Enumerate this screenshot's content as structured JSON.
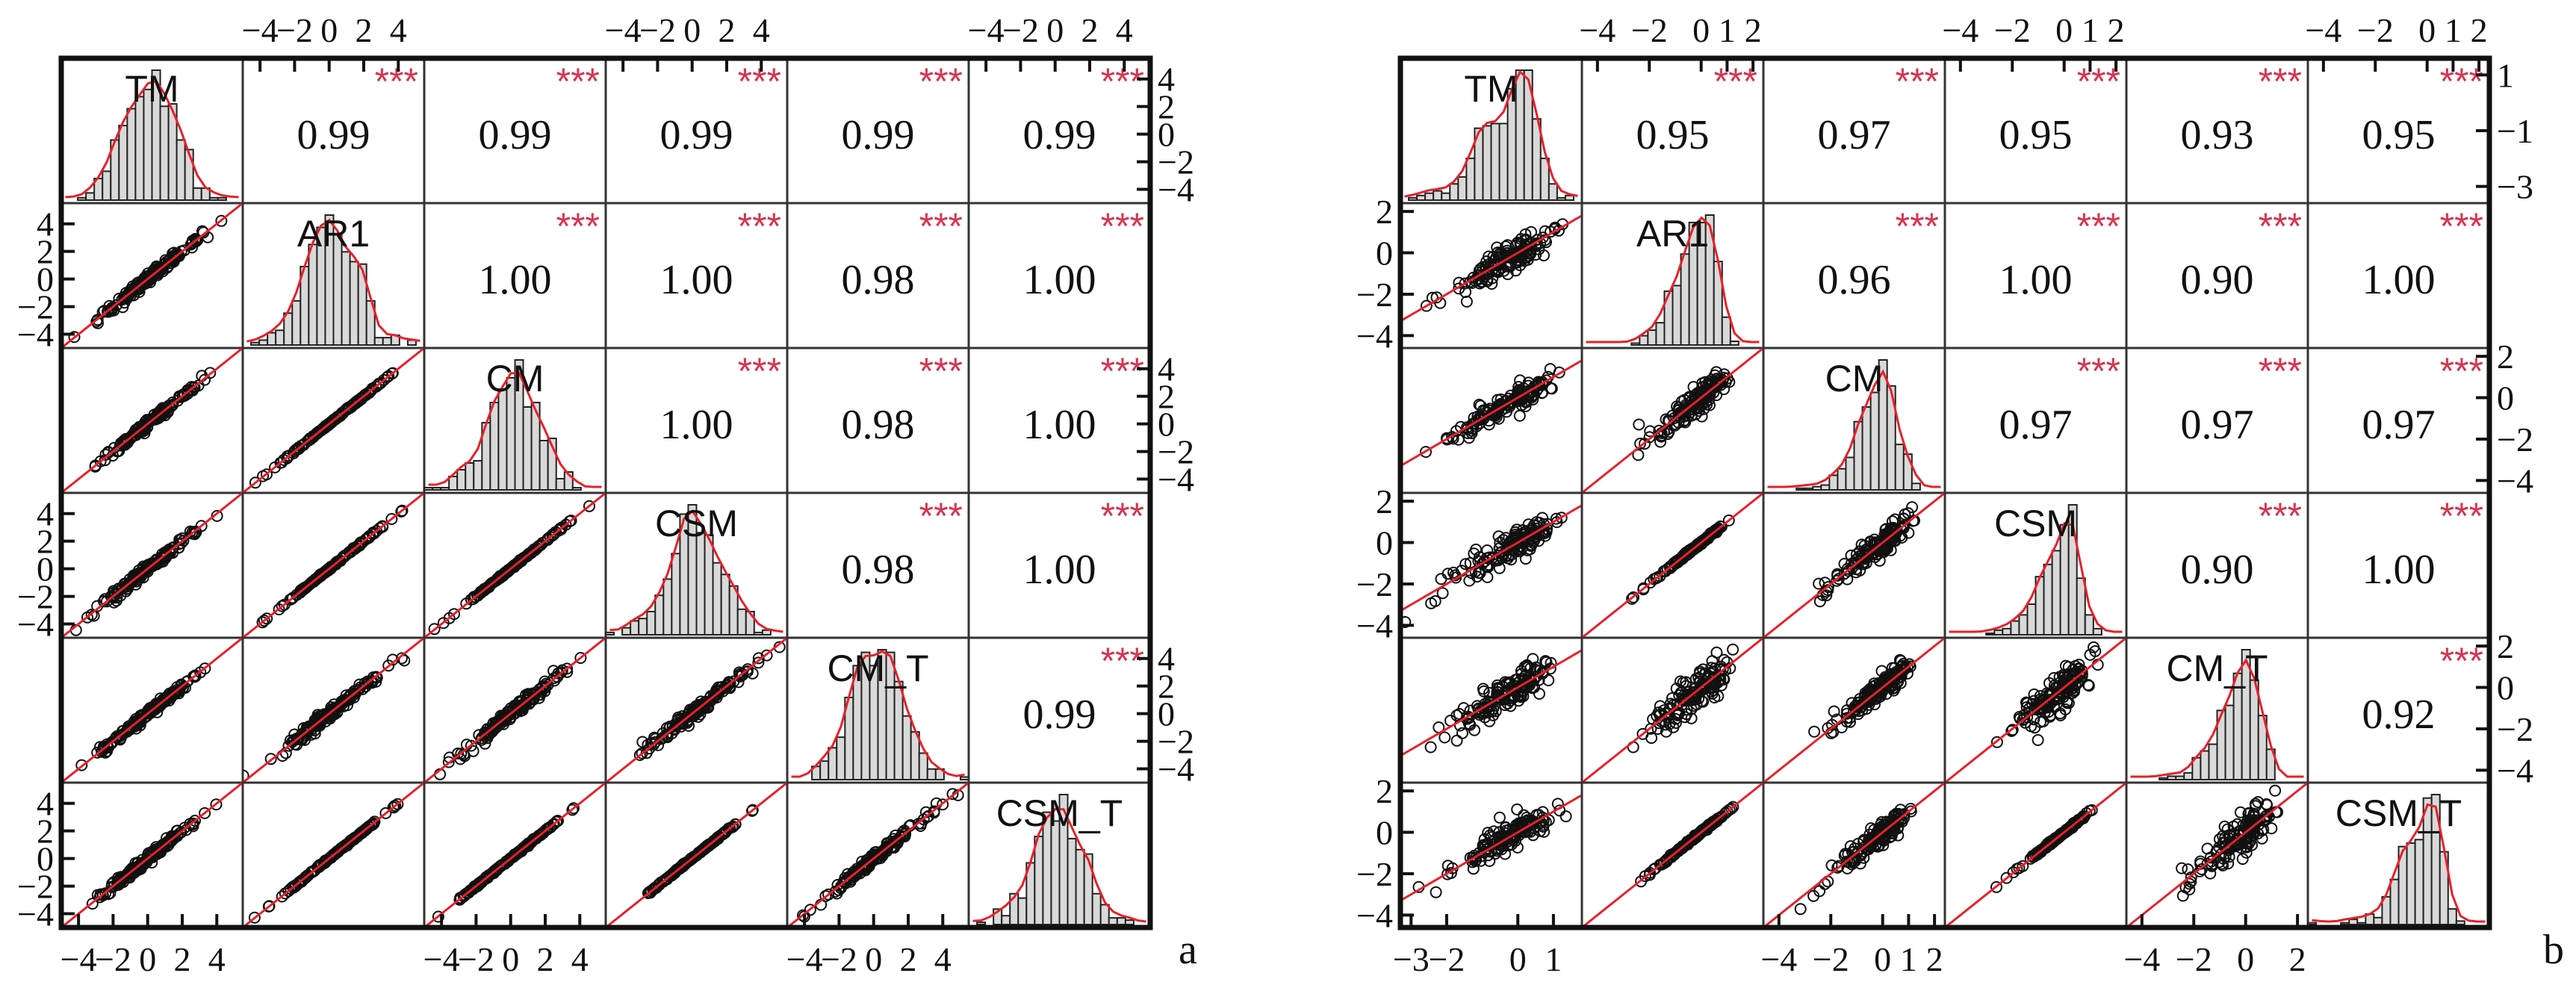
{
  "chart_data": [
    {
      "type": "scatter-matrix",
      "panel_label": "a",
      "variables": [
        "TM",
        "AR1",
        "CM",
        "CSM",
        "CM_T",
        "CSM_T"
      ],
      "significance": "***",
      "correlations": [
        [
          null,
          0.99,
          0.99,
          0.99,
          0.99,
          0.99
        ],
        [
          null,
          null,
          1.0,
          1.0,
          0.98,
          1.0
        ],
        [
          null,
          null,
          null,
          1.0,
          0.98,
          1.0
        ],
        [
          null,
          null,
          null,
          null,
          0.98,
          1.0
        ],
        [
          null,
          null,
          null,
          null,
          null,
          0.99
        ],
        [
          null,
          null,
          null,
          null,
          null,
          null
        ]
      ],
      "correlation_labels": [
        [
          null,
          "0.99",
          "0.99",
          "0.99",
          "0.99",
          "0.99"
        ],
        [
          null,
          null,
          "1.00",
          "1.00",
          "0.98",
          "1.00"
        ],
        [
          null,
          null,
          null,
          "1.00",
          "0.98",
          "1.00"
        ],
        [
          null,
          null,
          null,
          null,
          "0.98",
          "1.00"
        ],
        [
          null,
          null,
          null,
          null,
          null,
          "0.99"
        ],
        [
          null,
          null,
          null,
          null,
          null,
          null
        ]
      ],
      "range": [
        -5,
        5.5
      ],
      "skew": 0,
      "axes": {
        "top": {
          "columns": [
            1,
            3,
            5
          ],
          "ticks": [
            [
              -4,
              -2,
              0,
              2,
              4
            ],
            [
              -4,
              -2,
              0,
              2,
              4
            ],
            [
              -4,
              -2,
              0,
              2,
              4
            ]
          ]
        },
        "bottom": {
          "columns": [
            0,
            2,
            4
          ],
          "ticks": [
            [
              -4,
              -2,
              0,
              2,
              4
            ],
            [
              -4,
              -2,
              0,
              2,
              4
            ],
            [
              -4,
              -2,
              0,
              2,
              4
            ]
          ]
        },
        "left": {
          "rows": [
            1,
            3,
            5
          ],
          "ticks": [
            [
              4,
              2,
              0,
              -2,
              -4
            ],
            [
              4,
              2,
              0,
              -2,
              -4
            ],
            [
              4,
              2,
              0,
              -2,
              -4
            ]
          ]
        },
        "right": {
          "rows": [
            0,
            2,
            4
          ],
          "ticks": [
            [
              4,
              2,
              0,
              -2,
              -4
            ],
            [
              4,
              2,
              0,
              -2,
              -4
            ],
            [
              4,
              2,
              0,
              -2,
              -4
            ]
          ]
        }
      },
      "colors": {
        "histogram_fill": "#d9d9d9",
        "density_line": "#e8202a",
        "stars": "#d6344f",
        "fit_line": "#e8202a"
      }
    },
    {
      "type": "scatter-matrix",
      "panel_label": "b",
      "variables": [
        "TM",
        "AR1",
        "CM",
        "CSM",
        "CM_T",
        "CSM_T"
      ],
      "significance": "***",
      "correlations": [
        [
          null,
          0.95,
          0.97,
          0.95,
          0.93,
          0.95
        ],
        [
          null,
          null,
          0.96,
          1.0,
          0.9,
          1.0
        ],
        [
          null,
          null,
          null,
          0.97,
          0.97,
          0.97
        ],
        [
          null,
          null,
          null,
          null,
          0.9,
          1.0
        ],
        [
          null,
          null,
          null,
          null,
          null,
          0.92
        ],
        [
          null,
          null,
          null,
          null,
          null,
          null
        ]
      ],
      "correlation_labels": [
        [
          null,
          "0.95",
          "0.97",
          "0.95",
          "0.93",
          "0.95"
        ],
        [
          null,
          null,
          "0.96",
          "1.00",
          "0.90",
          "1.00"
        ],
        [
          null,
          null,
          null,
          "0.97",
          "0.97",
          "0.97"
        ],
        [
          null,
          null,
          null,
          null,
          "0.90",
          "1.00"
        ],
        [
          null,
          null,
          null,
          null,
          null,
          "0.92"
        ],
        [
          null,
          null,
          null,
          null,
          null,
          null
        ]
      ],
      "range": [
        -4.6,
        2.4
      ],
      "skew": 1,
      "axes": {
        "top": {
          "columns": [
            1,
            3,
            5
          ],
          "ticks": [
            [
              -4,
              -2,
              0,
              1,
              2
            ],
            [
              -4,
              -2,
              0,
              1,
              2
            ],
            [
              -4,
              -2,
              0,
              1,
              2
            ]
          ]
        },
        "bottom": {
          "columns": [
            0,
            2,
            4
          ],
          "ticks": [
            [
              -3,
              -2,
              0,
              1
            ],
            [
              -4,
              -2,
              0,
              1,
              2
            ],
            [
              -4,
              -2,
              0,
              2
            ]
          ]
        },
        "left": {
          "rows": [
            1,
            3,
            5
          ],
          "ticks": [
            [
              2,
              0,
              -2,
              -4
            ],
            [
              2,
              0,
              -2,
              -4
            ],
            [
              2,
              0,
              -2,
              -4
            ]
          ]
        },
        "right": {
          "rows": [
            0,
            2,
            4
          ],
          "ticks": [
            [
              1,
              -1,
              -3
            ],
            [
              2,
              0,
              -2,
              -4
            ],
            [
              2,
              0,
              -2,
              -4
            ]
          ]
        }
      },
      "row_ranges": {
        "0": [
          -3.6,
          1.6
        ]
      },
      "col_ranges": {
        "0": [
          -3.3,
          1.8
        ]
      },
      "colors": {
        "histogram_fill": "#d9d9d9",
        "density_line": "#e8202a",
        "stars": "#d6344f",
        "fit_line": "#e8202a"
      }
    }
  ]
}
